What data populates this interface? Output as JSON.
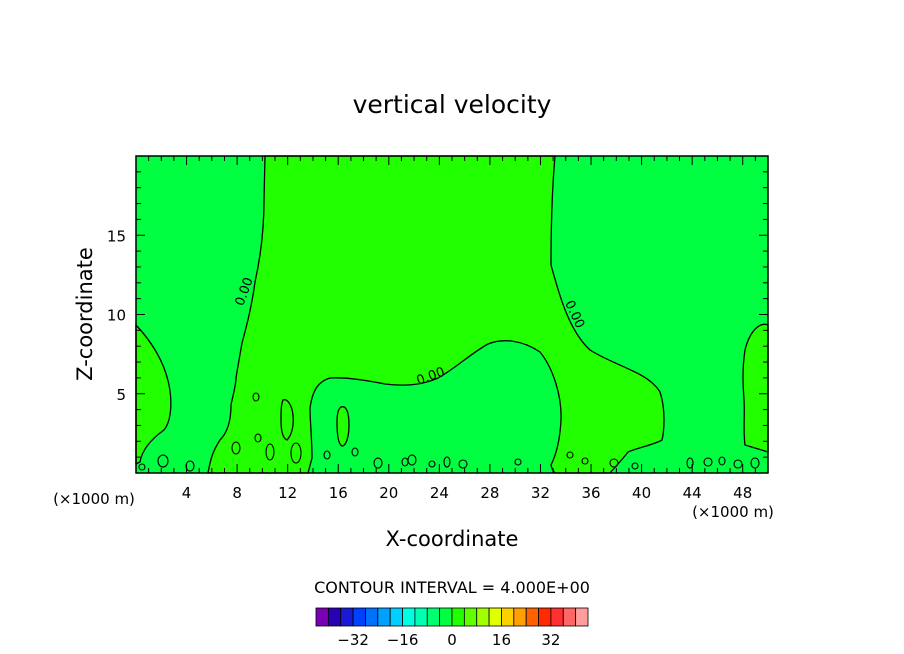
{
  "chart_data": {
    "type": "contour",
    "title": "vertical velocity",
    "xlabel": "X-coordinate",
    "ylabel": "Z-coordinate",
    "x_unit_left": "(×1000 m)",
    "x_unit_right": "(×1000 m)",
    "xlim": [
      0,
      50
    ],
    "ylim": [
      0,
      20
    ],
    "x_ticks": [
      "4",
      "8",
      "12",
      "16",
      "20",
      "24",
      "28",
      "32",
      "36",
      "40",
      "44",
      "48"
    ],
    "y_ticks": [
      "5",
      "10",
      "15"
    ],
    "contour_labels": [
      "0.00",
      "0.00",
      "0.00"
    ],
    "contour_interval_text": "CONTOUR INTERVAL = 4.000E+00",
    "colorbar": {
      "ticks": [
        "−32",
        "−16",
        "0",
        "16",
        "32"
      ],
      "colors": [
        "#7a00b4",
        "#2a00b4",
        "#1a1ad6",
        "#0040ff",
        "#0070ff",
        "#00a0ff",
        "#00d0ff",
        "#00ffe0",
        "#00ffb0",
        "#00ff70",
        "#00ff40",
        "#22ff00",
        "#60ff00",
        "#a0ff00",
        "#e0ff00",
        "#ffd000",
        "#ffa000",
        "#ff6000",
        "#ff2a00",
        "#ff3030",
        "#ff6666",
        "#ff9c9c"
      ]
    },
    "colors": {
      "positive_fill": "#22ff00",
      "negative_fill": "#00ff40",
      "contour_line": "#000000"
    }
  }
}
